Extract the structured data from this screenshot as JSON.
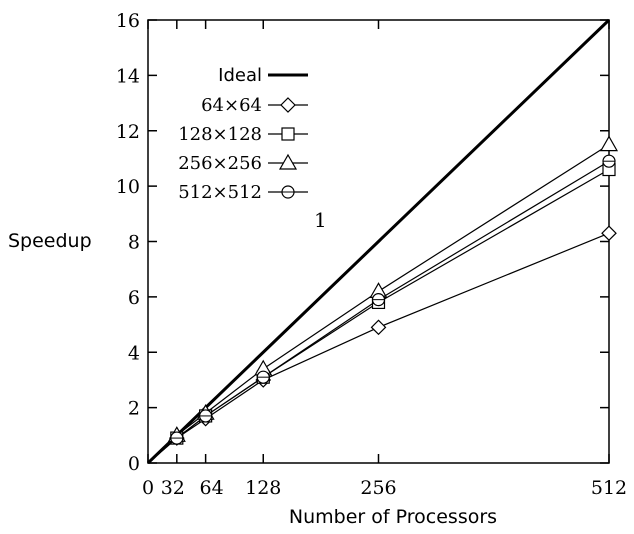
{
  "chart_data": {
    "type": "line",
    "xlabel": "Number of Processors",
    "ylabel": "Speedup",
    "xlim": [
      0,
      512
    ],
    "ylim": [
      0,
      16
    ],
    "x_ticks": [
      0,
      32,
      64,
      128,
      256,
      512
    ],
    "x_tick_labels": [
      "0",
      "32",
      "64",
      "128",
      "256",
      "512"
    ],
    "y_ticks": [
      0,
      2,
      4,
      6,
      8,
      10,
      12,
      14,
      16
    ],
    "y_tick_labels": [
      "0",
      "2",
      "4",
      "6",
      "8",
      "10",
      "12",
      "14",
      "16"
    ],
    "grid": false,
    "legend_position": "top-left",
    "x": [
      0,
      32,
      64,
      128,
      256,
      512
    ],
    "series": [
      {
        "name": "Ideal",
        "marker": "none",
        "values": [
          0,
          1,
          2,
          4,
          8,
          16
        ]
      },
      {
        "name": "64×64",
        "marker": "diamond",
        "values": [
          0,
          0.9,
          1.6,
          3.0,
          4.9,
          8.3
        ]
      },
      {
        "name": "128×128",
        "marker": "square",
        "values": [
          0,
          0.9,
          1.7,
          3.1,
          5.8,
          10.6
        ]
      },
      {
        "name": "256×256",
        "marker": "triangle",
        "values": [
          0,
          1.0,
          1.8,
          3.4,
          6.2,
          11.5
        ]
      },
      {
        "name": "512×512",
        "marker": "circle",
        "values": [
          0,
          0.9,
          1.7,
          3.1,
          5.9,
          10.9
        ]
      }
    ],
    "annotations": [
      "1"
    ]
  }
}
